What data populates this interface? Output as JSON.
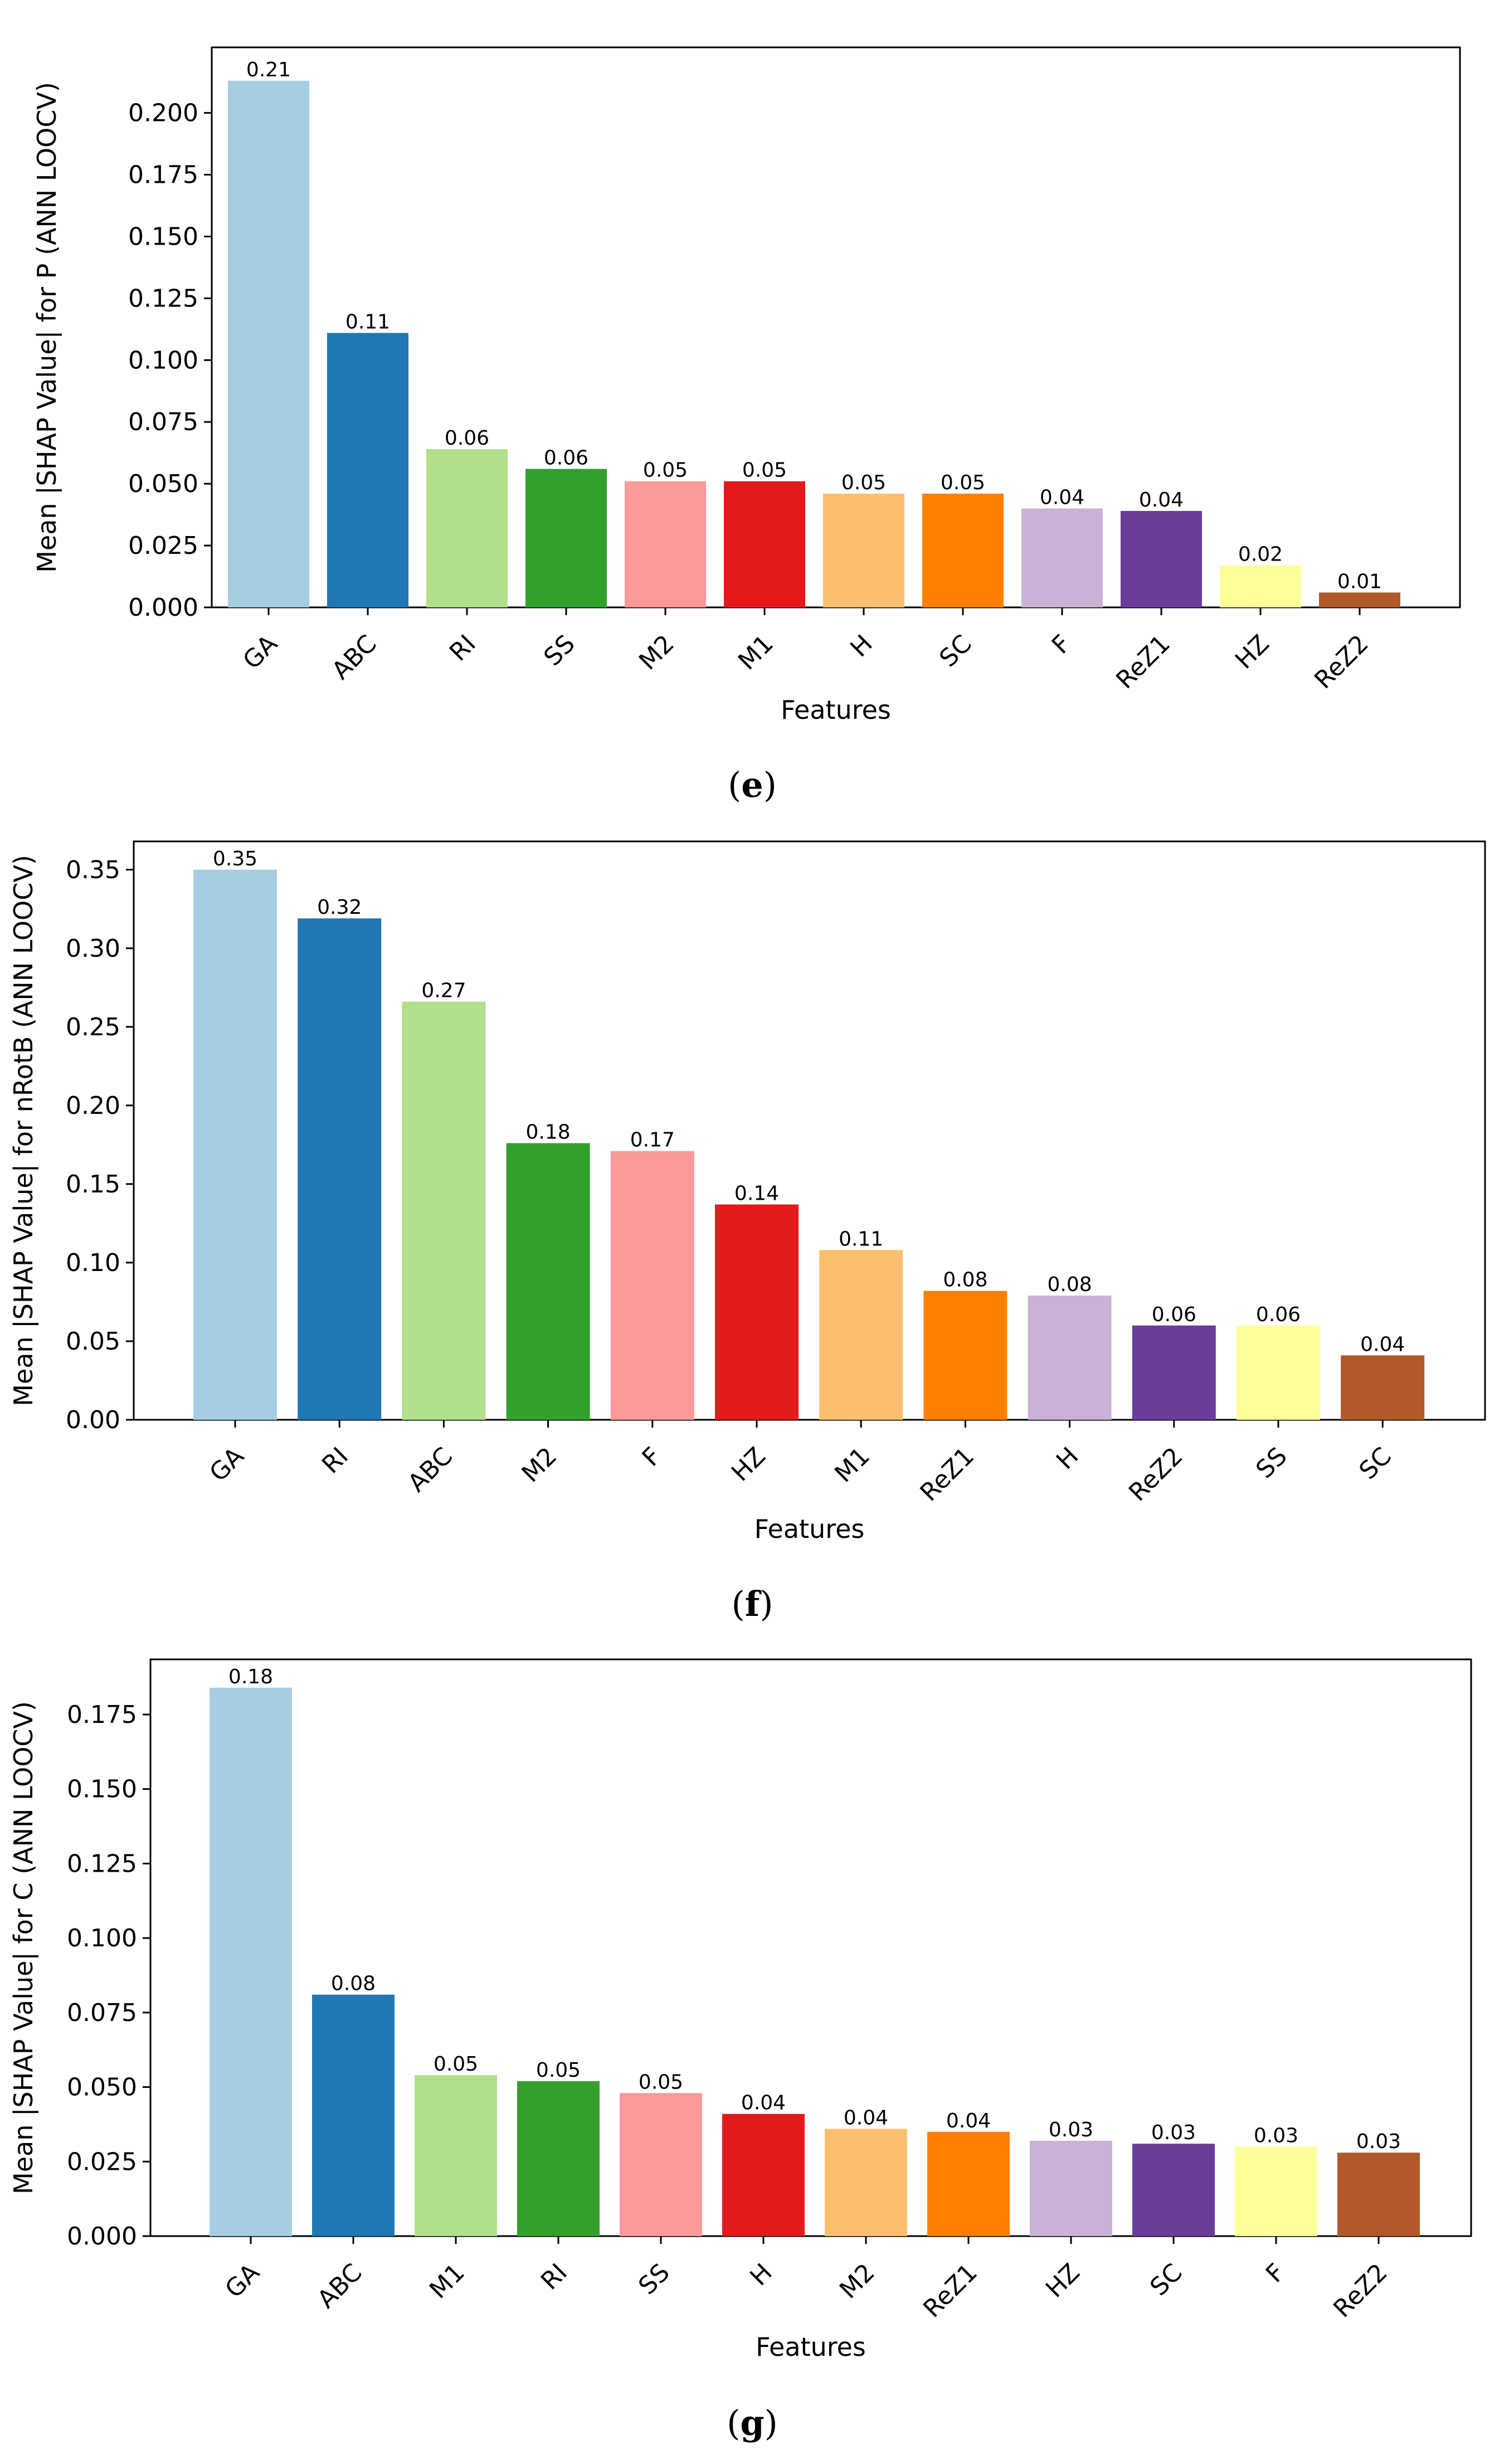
{
  "palette": [
    "#a6cee3",
    "#1f78b4",
    "#b2df8a",
    "#33a02c",
    "#fb9a99",
    "#e31a1c",
    "#fdbf6f",
    "#ff7f00",
    "#cab2d6",
    "#6a3d9a",
    "#ffff99",
    "#b15928"
  ],
  "chart_data": [
    {
      "type": "bar",
      "caption": "e",
      "categories": [
        "GA",
        "ABC",
        "RI",
        "SS",
        "M2",
        "M1",
        "H",
        "SC",
        "F",
        "ReZ1",
        "HZ",
        "ReZ2"
      ],
      "values": [
        0.213,
        0.111,
        0.064,
        0.056,
        0.051,
        0.051,
        0.046,
        0.046,
        0.04,
        0.039,
        0.017,
        0.006
      ],
      "data_labels": [
        "0.21",
        "0.11",
        "0.06",
        "0.06",
        "0.05",
        "0.05",
        "0.05",
        "0.05",
        "0.04",
        "0.04",
        "0.02",
        "0.01"
      ],
      "xlabel": "Features",
      "ylabel": "Mean |SHAP Value| for P (ANN LOOCV)",
      "ylim": [
        0,
        0.2265
      ],
      "yticks": [
        0.0,
        0.025,
        0.05,
        0.075,
        0.1,
        0.125,
        0.15,
        0.175,
        0.2
      ],
      "ytick_labels": [
        "0.000",
        "0.025",
        "0.050",
        "0.075",
        "0.100",
        "0.125",
        "0.150",
        "0.175",
        "0.200"
      ],
      "grid": false
    },
    {
      "type": "bar",
      "caption": "f",
      "categories": [
        "GA",
        "RI",
        "ABC",
        "M2",
        "F",
        "HZ",
        "M1",
        "ReZ1",
        "H",
        "ReZ2",
        "SS",
        "SC"
      ],
      "values": [
        0.35,
        0.319,
        0.266,
        0.176,
        0.171,
        0.137,
        0.108,
        0.082,
        0.079,
        0.06,
        0.06,
        0.041
      ],
      "data_labels": [
        "0.35",
        "0.32",
        "0.27",
        "0.18",
        "0.17",
        "0.14",
        "0.11",
        "0.08",
        "0.08",
        "0.06",
        "0.06",
        "0.04"
      ],
      "xlabel": "Features",
      "ylabel": "Mean |SHAP Value| for nRotB (ANN LOOCV)",
      "ylim": [
        0,
        0.368
      ],
      "yticks": [
        0.0,
        0.05,
        0.1,
        0.15,
        0.2,
        0.25,
        0.3,
        0.35
      ],
      "ytick_labels": [
        "0.00",
        "0.05",
        "0.10",
        "0.15",
        "0.20",
        "0.25",
        "0.30",
        "0.35"
      ],
      "grid": false
    },
    {
      "type": "bar",
      "caption": "g",
      "categories": [
        "GA",
        "ABC",
        "M1",
        "RI",
        "SS",
        "H",
        "M2",
        "ReZ1",
        "HZ",
        "SC",
        "F",
        "ReZ2"
      ],
      "values": [
        0.184,
        0.081,
        0.054,
        0.052,
        0.048,
        0.041,
        0.036,
        0.035,
        0.032,
        0.031,
        0.03,
        0.028
      ],
      "data_labels": [
        "0.18",
        "0.08",
        "0.05",
        "0.05",
        "0.05",
        "0.04",
        "0.04",
        "0.04",
        "0.03",
        "0.03",
        "0.03",
        "0.03"
      ],
      "xlabel": "Features",
      "ylabel": "Mean |SHAP Value| for C (ANN LOOCV)",
      "ylim": [
        0,
        0.1935
      ],
      "yticks": [
        0.0,
        0.025,
        0.05,
        0.075,
        0.1,
        0.125,
        0.15,
        0.175
      ],
      "ytick_labels": [
        "0.000",
        "0.025",
        "0.050",
        "0.075",
        "0.100",
        "0.125",
        "0.150",
        "0.175"
      ],
      "grid": false
    }
  ]
}
